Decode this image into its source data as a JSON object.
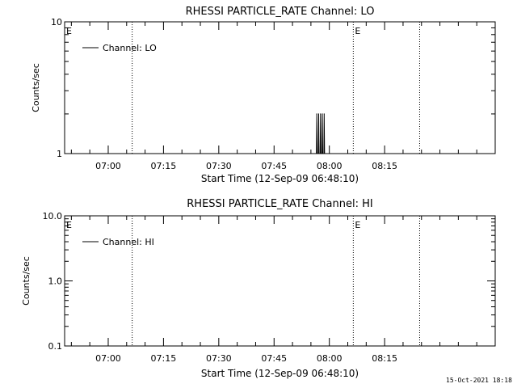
{
  "footer": {
    "timestamp": "15-Oct-2021 18:18"
  },
  "chart_data": [
    {
      "type": "line",
      "title": "RHESSI PARTICLE_RATE Channel: LO",
      "xlabel": "Start Time (12-Sep-09 06:48:10)",
      "ylabel": "Counts/sec",
      "yscale": "log",
      "ylim": [
        1,
        10
      ],
      "ytick_values": [
        1,
        10
      ],
      "ytick_labels": [
        "1",
        "10"
      ],
      "xlim_minutes": [
        48.17,
        165.0
      ],
      "xtick_values": [
        60,
        75,
        90,
        105,
        120,
        135
      ],
      "xtick_labels": [
        "07:00",
        "07:15",
        "07:30",
        "07:45",
        "08:00",
        "08:15"
      ],
      "legend": {
        "location": "top-left",
        "entries": [
          "Channel: LO"
        ]
      },
      "eclipse_markers": [
        {
          "minute": 48.17,
          "label": "E"
        },
        {
          "minute": 66.5,
          "label": ""
        },
        {
          "minute": 126.5,
          "label": "E"
        },
        {
          "minute": 144.5,
          "label": ""
        }
      ],
      "grid": false,
      "series": [
        {
          "name": "Channel: LO",
          "x": [
            116.5,
            116.6,
            116.7,
            117.0,
            117.1,
            117.2,
            117.5,
            117.6,
            117.7,
            118.0,
            118.1,
            118.2,
            118.5,
            118.6,
            118.7
          ],
          "y": [
            1,
            2,
            1,
            1,
            2,
            1,
            1,
            2,
            1,
            1,
            2,
            1,
            1,
            2,
            1
          ]
        }
      ]
    },
    {
      "type": "line",
      "title": "RHESSI PARTICLE_RATE Channel: HI",
      "xlabel": "Start Time (12-Sep-09 06:48:10)",
      "ylabel": "Counts/sec",
      "yscale": "log",
      "ylim": [
        0.1,
        10
      ],
      "ytick_values": [
        0.1,
        1,
        10
      ],
      "ytick_labels": [
        "0.1",
        "1.0",
        "10.0"
      ],
      "xlim_minutes": [
        48.17,
        165.0
      ],
      "xtick_values": [
        60,
        75,
        90,
        105,
        120,
        135
      ],
      "xtick_labels": [
        "07:00",
        "07:15",
        "07:30",
        "07:45",
        "08:00",
        "08:15"
      ],
      "legend": {
        "location": "top-left",
        "entries": [
          "Channel: HI"
        ]
      },
      "eclipse_markers": [
        {
          "minute": 48.17,
          "label": "E"
        },
        {
          "minute": 66.5,
          "label": ""
        },
        {
          "minute": 126.5,
          "label": "E"
        },
        {
          "minute": 144.5,
          "label": ""
        }
      ],
      "grid": false,
      "series": [
        {
          "name": "Channel: HI",
          "x": [],
          "y": []
        }
      ]
    }
  ]
}
